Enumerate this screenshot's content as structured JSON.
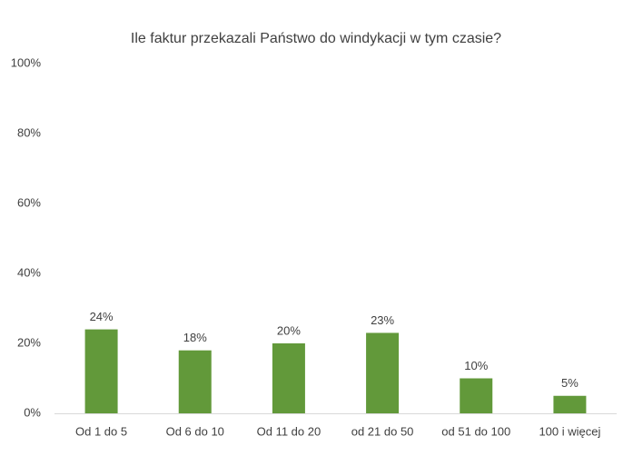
{
  "chart_data": {
    "type": "bar",
    "title": "Ile faktur przekazali Państwo do windykacji w tym czasie?",
    "categories": [
      "Od 1 do 5",
      "Od 6 do 10",
      "Od 11 do 20",
      "od 21 do 50",
      "od 51 do 100",
      "100 i więcej"
    ],
    "values": [
      24,
      18,
      20,
      23,
      10,
      5
    ],
    "value_labels": [
      "24%",
      "18%",
      "20%",
      "23%",
      "10%",
      "5%"
    ],
    "color": "#62993a",
    "ylim": [
      0,
      100
    ],
    "yticks": [
      {
        "value": 0,
        "label": "0%"
      },
      {
        "value": 20,
        "label": "20%"
      },
      {
        "value": 40,
        "label": "40%"
      },
      {
        "value": 60,
        "label": "60%"
      },
      {
        "value": 80,
        "label": "80%"
      },
      {
        "value": 100,
        "label": "100%"
      }
    ],
    "grid": false
  }
}
